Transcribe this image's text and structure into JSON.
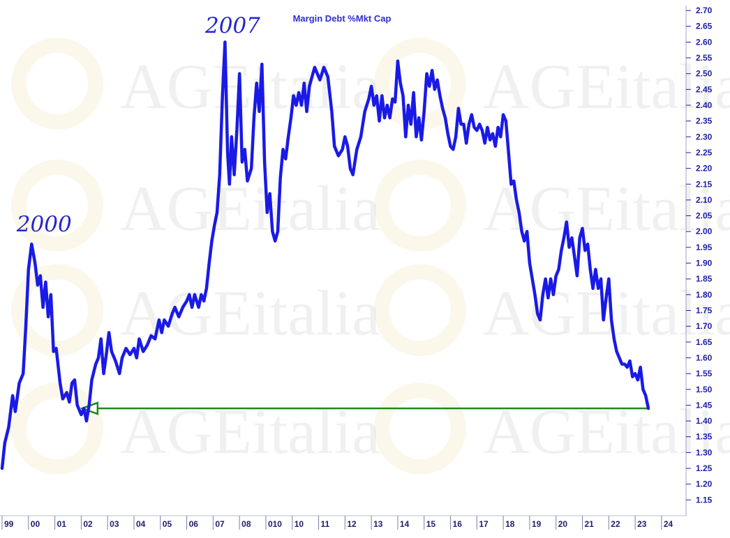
{
  "chart_data": {
    "type": "line",
    "title": "Margin Debt %Mkt Cap",
    "xlabel": "",
    "ylabel": "",
    "watermark": "AGEitalia",
    "xlim": [
      1999.0,
      2024.4
    ],
    "ylim": [
      1.1,
      2.72
    ],
    "yticks": [
      1.15,
      1.2,
      1.25,
      1.3,
      1.35,
      1.4,
      1.45,
      1.5,
      1.55,
      1.6,
      1.65,
      1.7,
      1.75,
      1.8,
      1.85,
      1.9,
      1.95,
      2.0,
      2.05,
      2.1,
      2.15,
      2.2,
      2.25,
      2.3,
      2.35,
      2.4,
      2.45,
      2.5,
      2.55,
      2.6,
      2.65,
      2.7
    ],
    "yticklabels": [
      "1.15",
      "1.20",
      "1.25",
      "1.30",
      "1.35",
      "1.40",
      "1.45",
      "1.50",
      "1.55",
      "1.60",
      "1.65",
      "1.70",
      "1.75",
      "1.80",
      "1.85",
      "1.90",
      "1.95",
      "2.00",
      "2.05",
      "2.10",
      "2.15",
      "2.20",
      "2.25",
      "2.30",
      "2.35",
      "2.40",
      "2.45",
      "2.50",
      "2.55",
      "2.60",
      "2.65",
      "2.70"
    ],
    "xticks": [
      {
        "x": 1999.0,
        "label": "99"
      },
      {
        "x": 2000.0,
        "label": "00"
      },
      {
        "x": 2001.0,
        "label": "01"
      },
      {
        "x": 2002.0,
        "label": "02"
      },
      {
        "x": 2003.0,
        "label": "03"
      },
      {
        "x": 2004.0,
        "label": "04"
      },
      {
        "x": 2005.0,
        "label": "05"
      },
      {
        "x": 2006.0,
        "label": "06"
      },
      {
        "x": 2007.0,
        "label": "07"
      },
      {
        "x": 2008.0,
        "label": "08"
      },
      {
        "x": 2009.0,
        "label": "010"
      },
      {
        "x": 2010.0,
        "label": "10"
      },
      {
        "x": 2011.0,
        "label": "11"
      },
      {
        "x": 2012.0,
        "label": "12"
      },
      {
        "x": 2013.0,
        "label": "13"
      },
      {
        "x": 2014.0,
        "label": "14"
      },
      {
        "x": 2015.0,
        "label": "15"
      },
      {
        "x": 2016.0,
        "label": "16"
      },
      {
        "x": 2017.0,
        "label": "17"
      },
      {
        "x": 2018.0,
        "label": "18"
      },
      {
        "x": 2019.0,
        "label": "19"
      },
      {
        "x": 2020.0,
        "label": "20"
      },
      {
        "x": 2021.0,
        "label": "21"
      },
      {
        "x": 2022.0,
        "label": "22"
      },
      {
        "x": 2023.0,
        "label": "23"
      },
      {
        "x": 2024.0,
        "label": "24"
      }
    ],
    "series": [
      {
        "color": "#1a1ae6",
        "points": [
          [
            1999.0,
            1.25
          ],
          [
            1999.1,
            1.33
          ],
          [
            1999.25,
            1.38
          ],
          [
            1999.4,
            1.48
          ],
          [
            1999.5,
            1.43
          ],
          [
            1999.65,
            1.52
          ],
          [
            1999.8,
            1.55
          ],
          [
            1999.9,
            1.7
          ],
          [
            2000.0,
            1.88
          ],
          [
            2000.12,
            1.96
          ],
          [
            2000.25,
            1.9
          ],
          [
            2000.35,
            1.83
          ],
          [
            2000.45,
            1.86
          ],
          [
            2000.55,
            1.76
          ],
          [
            2000.65,
            1.84
          ],
          [
            2000.75,
            1.73
          ],
          [
            2000.85,
            1.8
          ],
          [
            2000.95,
            1.62
          ],
          [
            2001.05,
            1.63
          ],
          [
            2001.2,
            1.52
          ],
          [
            2001.3,
            1.47
          ],
          [
            2001.45,
            1.49
          ],
          [
            2001.55,
            1.46
          ],
          [
            2001.65,
            1.52
          ],
          [
            2001.75,
            1.53
          ],
          [
            2001.85,
            1.45
          ],
          [
            2002.0,
            1.42
          ],
          [
            2002.1,
            1.44
          ],
          [
            2002.2,
            1.4
          ],
          [
            2002.3,
            1.45
          ],
          [
            2002.4,
            1.53
          ],
          [
            2002.55,
            1.58
          ],
          [
            2002.65,
            1.6
          ],
          [
            2002.75,
            1.66
          ],
          [
            2002.85,
            1.55
          ],
          [
            2002.95,
            1.61
          ],
          [
            2003.05,
            1.68
          ],
          [
            2003.15,
            1.62
          ],
          [
            2003.3,
            1.59
          ],
          [
            2003.45,
            1.55
          ],
          [
            2003.55,
            1.6
          ],
          [
            2003.7,
            1.63
          ],
          [
            2003.85,
            1.61
          ],
          [
            2004.0,
            1.63
          ],
          [
            2004.1,
            1.6
          ],
          [
            2004.2,
            1.66
          ],
          [
            2004.35,
            1.62
          ],
          [
            2004.5,
            1.64
          ],
          [
            2004.65,
            1.67
          ],
          [
            2004.8,
            1.66
          ],
          [
            2004.95,
            1.72
          ],
          [
            2005.05,
            1.68
          ],
          [
            2005.15,
            1.72
          ],
          [
            2005.3,
            1.7
          ],
          [
            2005.45,
            1.74
          ],
          [
            2005.55,
            1.76
          ],
          [
            2005.7,
            1.73
          ],
          [
            2005.85,
            1.76
          ],
          [
            2006.0,
            1.78
          ],
          [
            2006.1,
            1.8
          ],
          [
            2006.2,
            1.76
          ],
          [
            2006.3,
            1.8
          ],
          [
            2006.45,
            1.76
          ],
          [
            2006.55,
            1.8
          ],
          [
            2006.65,
            1.78
          ],
          [
            2006.75,
            1.82
          ],
          [
            2006.85,
            1.9
          ],
          [
            2006.95,
            1.97
          ],
          [
            2007.05,
            2.02
          ],
          [
            2007.15,
            2.06
          ],
          [
            2007.25,
            2.18
          ],
          [
            2007.35,
            2.42
          ],
          [
            2007.45,
            2.6
          ],
          [
            2007.55,
            2.25
          ],
          [
            2007.62,
            2.15
          ],
          [
            2007.7,
            2.3
          ],
          [
            2007.8,
            2.18
          ],
          [
            2007.9,
            2.32
          ],
          [
            2008.0,
            2.5
          ],
          [
            2008.1,
            2.22
          ],
          [
            2008.2,
            2.26
          ],
          [
            2008.3,
            2.16
          ],
          [
            2008.45,
            2.2
          ],
          [
            2008.55,
            2.36
          ],
          [
            2008.65,
            2.47
          ],
          [
            2008.75,
            2.38
          ],
          [
            2008.85,
            2.53
          ],
          [
            2008.95,
            2.22
          ],
          [
            2009.05,
            2.06
          ],
          [
            2009.15,
            2.12
          ],
          [
            2009.25,
            2.0
          ],
          [
            2009.35,
            1.97
          ],
          [
            2009.45,
            2.0
          ],
          [
            2009.55,
            2.17
          ],
          [
            2009.65,
            2.26
          ],
          [
            2009.75,
            2.23
          ],
          [
            2009.85,
            2.3
          ],
          [
            2009.95,
            2.36
          ],
          [
            2010.05,
            2.43
          ],
          [
            2010.15,
            2.4
          ],
          [
            2010.25,
            2.44
          ],
          [
            2010.35,
            2.4
          ],
          [
            2010.45,
            2.47
          ],
          [
            2010.55,
            2.38
          ],
          [
            2010.65,
            2.46
          ],
          [
            2010.75,
            2.49
          ],
          [
            2010.85,
            2.52
          ],
          [
            2010.95,
            2.5
          ],
          [
            2011.05,
            2.48
          ],
          [
            2011.2,
            2.52
          ],
          [
            2011.35,
            2.49
          ],
          [
            2011.5,
            2.38
          ],
          [
            2011.6,
            2.27
          ],
          [
            2011.75,
            2.24
          ],
          [
            2011.9,
            2.26
          ],
          [
            2012.0,
            2.3
          ],
          [
            2012.1,
            2.27
          ],
          [
            2012.2,
            2.2
          ],
          [
            2012.3,
            2.18
          ],
          [
            2012.45,
            2.26
          ],
          [
            2012.6,
            2.3
          ],
          [
            2012.75,
            2.38
          ],
          [
            2012.9,
            2.42
          ],
          [
            2013.0,
            2.46
          ],
          [
            2013.1,
            2.4
          ],
          [
            2013.2,
            2.43
          ],
          [
            2013.3,
            2.35
          ],
          [
            2013.4,
            2.43
          ],
          [
            2013.5,
            2.36
          ],
          [
            2013.6,
            2.4
          ],
          [
            2013.7,
            2.36
          ],
          [
            2013.8,
            2.42
          ],
          [
            2013.9,
            2.41
          ],
          [
            2014.0,
            2.54
          ],
          [
            2014.1,
            2.47
          ],
          [
            2014.2,
            2.43
          ],
          [
            2014.3,
            2.3
          ],
          [
            2014.4,
            2.4
          ],
          [
            2014.5,
            2.34
          ],
          [
            2014.6,
            2.44
          ],
          [
            2014.7,
            2.3
          ],
          [
            2014.8,
            2.36
          ],
          [
            2014.9,
            2.29
          ],
          [
            2015.0,
            2.38
          ],
          [
            2015.1,
            2.5
          ],
          [
            2015.2,
            2.46
          ],
          [
            2015.3,
            2.51
          ],
          [
            2015.4,
            2.45
          ],
          [
            2015.5,
            2.48
          ],
          [
            2015.6,
            2.43
          ],
          [
            2015.7,
            2.39
          ],
          [
            2015.8,
            2.36
          ],
          [
            2015.9,
            2.31
          ],
          [
            2016.0,
            2.27
          ],
          [
            2016.1,
            2.26
          ],
          [
            2016.2,
            2.3
          ],
          [
            2016.3,
            2.39
          ],
          [
            2016.4,
            2.34
          ],
          [
            2016.5,
            2.34
          ],
          [
            2016.6,
            2.28
          ],
          [
            2016.7,
            2.34
          ],
          [
            2016.8,
            2.37
          ],
          [
            2016.9,
            2.33
          ],
          [
            2017.0,
            2.32
          ],
          [
            2017.1,
            2.34
          ],
          [
            2017.2,
            2.32
          ],
          [
            2017.3,
            2.28
          ],
          [
            2017.4,
            2.33
          ],
          [
            2017.5,
            2.29
          ],
          [
            2017.6,
            2.31
          ],
          [
            2017.7,
            2.27
          ],
          [
            2017.8,
            2.33
          ],
          [
            2017.9,
            2.3
          ],
          [
            2018.0,
            2.37
          ],
          [
            2018.1,
            2.35
          ],
          [
            2018.2,
            2.25
          ],
          [
            2018.3,
            2.15
          ],
          [
            2018.4,
            2.16
          ],
          [
            2018.5,
            2.1
          ],
          [
            2018.6,
            2.06
          ],
          [
            2018.7,
            2.0
          ],
          [
            2018.8,
            1.97
          ],
          [
            2018.9,
            2.0
          ],
          [
            2019.0,
            1.9
          ],
          [
            2019.1,
            1.85
          ],
          [
            2019.2,
            1.8
          ],
          [
            2019.3,
            1.74
          ],
          [
            2019.4,
            1.72
          ],
          [
            2019.5,
            1.8
          ],
          [
            2019.6,
            1.85
          ],
          [
            2019.7,
            1.79
          ],
          [
            2019.8,
            1.85
          ],
          [
            2019.9,
            1.8
          ],
          [
            2020.0,
            1.86
          ],
          [
            2020.1,
            1.88
          ],
          [
            2020.2,
            1.94
          ],
          [
            2020.3,
            1.98
          ],
          [
            2020.4,
            2.03
          ],
          [
            2020.5,
            1.95
          ],
          [
            2020.6,
            1.98
          ],
          [
            2020.7,
            1.92
          ],
          [
            2020.8,
            1.86
          ],
          [
            2020.9,
            1.98
          ],
          [
            2021.0,
            2.01
          ],
          [
            2021.1,
            1.94
          ],
          [
            2021.2,
            1.96
          ],
          [
            2021.3,
            1.88
          ],
          [
            2021.4,
            1.82
          ],
          [
            2021.5,
            1.88
          ],
          [
            2021.6,
            1.82
          ],
          [
            2021.7,
            1.85
          ],
          [
            2021.8,
            1.72
          ],
          [
            2021.9,
            1.79
          ],
          [
            2022.0,
            1.85
          ],
          [
            2022.1,
            1.72
          ],
          [
            2022.2,
            1.66
          ],
          [
            2022.3,
            1.62
          ],
          [
            2022.4,
            1.6
          ],
          [
            2022.5,
            1.58
          ],
          [
            2022.6,
            1.58
          ],
          [
            2022.7,
            1.57
          ],
          [
            2022.8,
            1.59
          ],
          [
            2022.9,
            1.54
          ],
          [
            2023.0,
            1.55
          ],
          [
            2023.1,
            1.53
          ],
          [
            2023.2,
            1.57
          ],
          [
            2023.3,
            1.5
          ],
          [
            2023.4,
            1.48
          ],
          [
            2023.5,
            1.44
          ]
        ]
      }
    ],
    "reference_line": {
      "y": 1.44,
      "x_from": 2002.25,
      "x_to": 2023.5,
      "color": "#1d8a1d",
      "arrow": "left"
    },
    "annotations": [
      {
        "text": "2000",
        "x": 1999.55,
        "y": 2.0
      },
      {
        "text": "2007",
        "x": 2006.7,
        "y": 2.63
      }
    ]
  }
}
